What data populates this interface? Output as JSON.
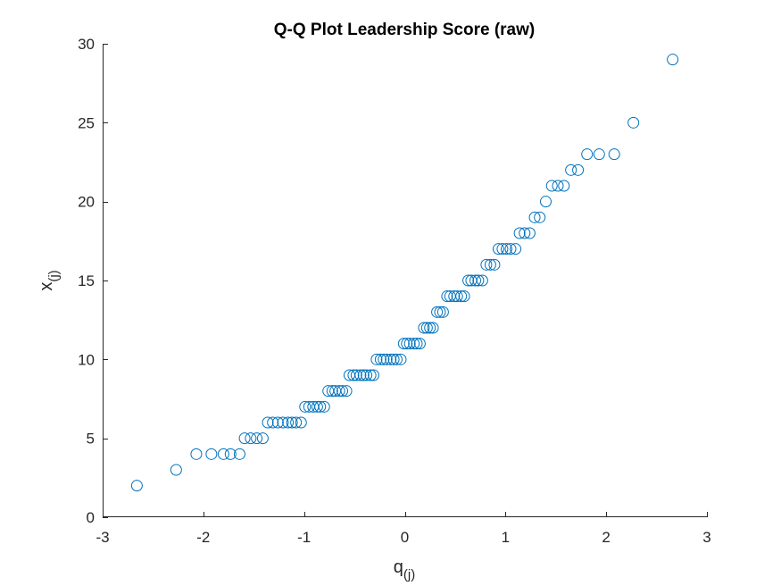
{
  "chart_data": {
    "type": "scatter",
    "title": "Q-Q Plot Leadership Score (raw)",
    "xlabel": {
      "base": "q",
      "subscript": "(j)"
    },
    "ylabel": {
      "base": "x",
      "subscript": "(j)"
    },
    "xlim": [
      -3,
      3
    ],
    "ylim": [
      0,
      30
    ],
    "xticks": [
      -3,
      -2,
      -1,
      0,
      1,
      2,
      3
    ],
    "yticks": [
      0,
      5,
      10,
      15,
      20,
      25,
      30
    ],
    "grid": false,
    "marker": "open-circle",
    "color": "#0072BD",
    "points": [
      [
        -2.66,
        2
      ],
      [
        -2.27,
        3
      ],
      [
        -2.07,
        4
      ],
      [
        -1.92,
        4
      ],
      [
        -1.8,
        4
      ],
      [
        -1.73,
        4
      ],
      [
        -1.64,
        4
      ],
      [
        -1.59,
        5
      ],
      [
        -1.53,
        5
      ],
      [
        -1.47,
        5
      ],
      [
        -1.41,
        5
      ],
      [
        -1.36,
        6
      ],
      [
        -1.31,
        6
      ],
      [
        -1.26,
        6
      ],
      [
        -1.21,
        6
      ],
      [
        -1.16,
        6
      ],
      [
        -1.12,
        6
      ],
      [
        -1.08,
        6
      ],
      [
        -1.03,
        6
      ],
      [
        -0.99,
        7
      ],
      [
        -0.95,
        7
      ],
      [
        -0.91,
        7
      ],
      [
        -0.87,
        7
      ],
      [
        -0.84,
        7
      ],
      [
        -0.8,
        7
      ],
      [
        -0.76,
        8
      ],
      [
        -0.72,
        8
      ],
      [
        -0.69,
        8
      ],
      [
        -0.65,
        8
      ],
      [
        -0.62,
        8
      ],
      [
        -0.58,
        8
      ],
      [
        -0.55,
        9
      ],
      [
        -0.51,
        9
      ],
      [
        -0.48,
        9
      ],
      [
        -0.44,
        9
      ],
      [
        -0.41,
        9
      ],
      [
        -0.38,
        9
      ],
      [
        -0.34,
        9
      ],
      [
        -0.31,
        9
      ],
      [
        -0.28,
        10
      ],
      [
        -0.24,
        10
      ],
      [
        -0.21,
        10
      ],
      [
        -0.18,
        10
      ],
      [
        -0.14,
        10
      ],
      [
        -0.11,
        10
      ],
      [
        -0.08,
        10
      ],
      [
        -0.04,
        10
      ],
      [
        -0.01,
        11
      ],
      [
        0.02,
        11
      ],
      [
        0.05,
        11
      ],
      [
        0.09,
        11
      ],
      [
        0.12,
        11
      ],
      [
        0.15,
        11
      ],
      [
        0.19,
        12
      ],
      [
        0.22,
        12
      ],
      [
        0.25,
        12
      ],
      [
        0.28,
        12
      ],
      [
        0.32,
        13
      ],
      [
        0.35,
        13
      ],
      [
        0.38,
        13
      ],
      [
        0.42,
        14
      ],
      [
        0.45,
        14
      ],
      [
        0.49,
        14
      ],
      [
        0.52,
        14
      ],
      [
        0.56,
        14
      ],
      [
        0.59,
        14
      ],
      [
        0.63,
        15
      ],
      [
        0.66,
        15
      ],
      [
        0.7,
        15
      ],
      [
        0.73,
        15
      ],
      [
        0.77,
        15
      ],
      [
        0.81,
        16
      ],
      [
        0.85,
        16
      ],
      [
        0.89,
        16
      ],
      [
        0.93,
        17
      ],
      [
        0.97,
        17
      ],
      [
        1.01,
        17
      ],
      [
        1.05,
        17
      ],
      [
        1.1,
        17
      ],
      [
        1.14,
        18
      ],
      [
        1.19,
        18
      ],
      [
        1.24,
        18
      ],
      [
        1.29,
        19
      ],
      [
        1.34,
        19
      ],
      [
        1.4,
        20
      ],
      [
        1.46,
        21
      ],
      [
        1.52,
        21
      ],
      [
        1.58,
        21
      ],
      [
        1.65,
        22
      ],
      [
        1.72,
        22
      ],
      [
        1.81,
        23
      ],
      [
        1.93,
        23
      ],
      [
        2.08,
        23
      ],
      [
        2.27,
        25
      ],
      [
        2.66,
        29
      ]
    ]
  }
}
